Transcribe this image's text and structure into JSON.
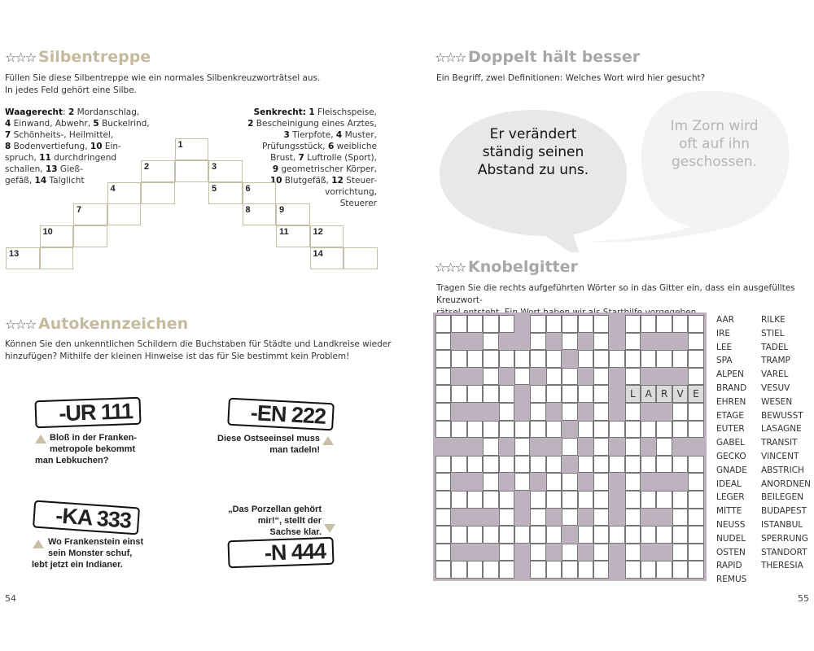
{
  "left_page": {
    "page_number": "54",
    "silbentreppe": {
      "stars": "☆☆☆",
      "title": "Silbentreppe",
      "intro": [
        "Füllen Sie diese Silbentreppe wie ein normales Silbenkreuzworträtsel aus.",
        "In jedes Feld gehört eine Silbe."
      ],
      "waagerecht_label": "Waagerecht",
      "waagerecht_text": [
        ": ",
        "2",
        " Mordanschlag,",
        "4",
        " Einwand, Abwehr, ",
        "5",
        " Buckelrind,",
        "7",
        " Schönheits-, Heilmittel,",
        "8",
        " Bodenvertiefung, ",
        "10",
        " Ein-spruch, ",
        "11",
        " durchdringend schallen, ",
        "13",
        " Gieß-gefäß, ",
        "14",
        " Talglicht"
      ],
      "waagerecht_lines": [
        "2 Mordanschlag,",
        "4 Einwand, Abwehr, 5 Buckelrind,",
        "7 Schönheits-, Heilmittel,",
        "8 Bodenvertiefung, 10 Ein-",
        "spruch, 11 durchdringend",
        "schallen, 13 Gieß-",
        "gefäß, 14 Talglicht"
      ],
      "senkrecht_label": "Senkrecht:",
      "senkrecht_lines": [
        "1 Fleischspeise,",
        "2 Bescheinigung eines Arztes,",
        "3 Tierpfote, 4 Muster,",
        "Prüfungsstück, 6 weibliche",
        "Brust, 7 Luftrolle (Sport),",
        "9 geometrischer Körper,",
        "10 Blutgefäß, 12 Steuer-",
        "vorrichtung,",
        "Steuerer"
      ],
      "cell_numbers": [
        "1",
        "2",
        "3",
        "4",
        "5",
        "6",
        "7",
        "8",
        "9",
        "10",
        "11",
        "12",
        "13",
        "14"
      ]
    },
    "autokennzeichen": {
      "stars": "☆☆☆",
      "title": "Autokennzeichen",
      "intro": [
        "Können Sie den unkenntlichen Schildern die Buchstaben für Städte und Landkreise wieder",
        "hinzufügen? Mithilfe der kleinen Hinweise ist das für Sie bestimmt kein Problem!"
      ],
      "plates": [
        {
          "text": "-UR 111",
          "hint": [
            "Bloß in der Franken-",
            "metropole bekommt",
            "man Lebkuchen?"
          ]
        },
        {
          "text": "-EN 222",
          "hint": [
            "Diese Ostseeinsel muss",
            "man tadeln!"
          ]
        },
        {
          "text": "-KA 333",
          "hint": [
            "Wo Frankenstein einst",
            "sein Monster schuf,",
            "lebt jetzt ein Indianer."
          ]
        },
        {
          "text": "-N 444",
          "hint": [
            "„Das Porzellan gehört",
            "mir!“, stellt der",
            "Sachse klar."
          ]
        }
      ],
      "hint_color": "#c9bfa6"
    }
  },
  "right_page": {
    "page_number": "55",
    "doppelt": {
      "stars": "☆☆☆",
      "title": "Doppelt hält besser",
      "intro": "Ein Begriff, zwei Definitionen: Welches Wort wird hier gesucht?",
      "bubble_1": [
        "Er verändert",
        "ständig seinen",
        "Abstand zu uns."
      ],
      "bubble_2": [
        "Im Zorn wird",
        "oft auf ihn",
        "geschossen."
      ]
    },
    "knobelgitter": {
      "stars": "☆☆☆",
      "title": "Knobelgitter",
      "intro": [
        "Tragen Sie die rechts aufgeführten Wörter so in das Gitter ein, dass ein ausgefülltes Kreuzwort-",
        "rätsel entsteht. Ein Wort haben wir als Starthilfe vorgegeben."
      ],
      "given_word": [
        "L",
        "A",
        "R",
        "V",
        "E"
      ],
      "words_col1": [
        "AAR",
        "IRE",
        "LEE",
        "SPA",
        "ALPEN",
        "BRAND",
        "EHREN",
        "ETAGE",
        "EUTER",
        "GABEL",
        "GECKO",
        "GNADE",
        "IDEAL",
        "LEGER",
        "MITTE",
        "NEUSS",
        "NUDEL",
        "OSTEN",
        "RAPID",
        "REMUS"
      ],
      "words_col2": [
        "RILKE",
        "STIEL",
        "TADEL",
        "TRAMP",
        "VAREL",
        "VESUV",
        "WESEN",
        "BEWUSST",
        "LASAGNE",
        "TRANSIT",
        "VINCENT",
        "ABSTRICH",
        "ANORDNEN",
        "BEILEGEN",
        "BUDAPEST",
        "ISTANBUL",
        "SPERRUNG",
        "STANDORT",
        "THERESIA"
      ],
      "grid_block_color": "#bdb2bd"
    }
  }
}
